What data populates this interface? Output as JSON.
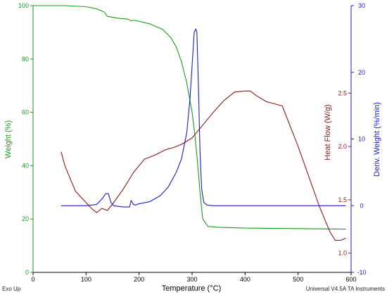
{
  "chart_data": {
    "type": "line",
    "xlabel": "Temperature (°C)",
    "x_ticks": [
      "0",
      "100",
      "200",
      "300",
      "400",
      "500",
      "600"
    ],
    "xlim": [
      0,
      600
    ],
    "grid": false,
    "legend": "none",
    "axes": {
      "weight": {
        "label": "Weight (%)",
        "color": "#1a9a1a",
        "range": [
          0,
          100
        ],
        "ticks": [
          "0",
          "20",
          "40",
          "60",
          "80",
          "100"
        ]
      },
      "heat_flow": {
        "label": "Heat Flow (W/g)",
        "color": "#8b1a1a",
        "range": [
          0.82,
          3.32
        ],
        "ticks": [
          "1.0",
          "1.5",
          "2.0",
          "2.5"
        ],
        "tick_values": [
          1.0,
          1.5,
          2.0,
          2.5
        ]
      },
      "deriv": {
        "label": "Deriv. Weight (%/min)",
        "color": "#1c1ccc",
        "range": [
          -10,
          30
        ],
        "ticks": [
          "-10",
          "0",
          "10",
          "20",
          "30"
        ]
      }
    },
    "series": [
      {
        "axis": "weight",
        "color": "#1a9a1a",
        "x": [
          0,
          60,
          100,
          120,
          135,
          140,
          160,
          180,
          185,
          190,
          220,
          245,
          260,
          270,
          280,
          290,
          300,
          305,
          310,
          315,
          320,
          330,
          350,
          400,
          500,
          590
        ],
        "y": [
          100,
          100,
          99.6,
          98.8,
          97.5,
          96,
          95.3,
          94.9,
          94.3,
          94.6,
          93.2,
          91,
          88,
          84.5,
          79,
          71,
          60,
          52,
          42,
          30,
          20,
          17.2,
          16.9,
          16.6,
          16.4,
          16.2
        ]
      },
      {
        "axis": "heat_flow",
        "color": "#8b1a1a",
        "x": [
          53,
          60,
          70,
          80,
          95,
          110,
          120,
          130,
          140,
          150,
          170,
          190,
          210,
          230,
          250,
          265,
          280,
          300,
          320,
          340,
          360,
          380,
          400,
          410,
          420,
          440,
          470,
          500,
          540,
          560,
          570,
          580,
          590
        ],
        "y": [
          1.95,
          1.82,
          1.7,
          1.58,
          1.5,
          1.42,
          1.38,
          1.42,
          1.4,
          1.46,
          1.6,
          1.76,
          1.88,
          1.92,
          1.97,
          1.99,
          2.02,
          2.08,
          2.2,
          2.32,
          2.43,
          2.51,
          2.52,
          2.52,
          2.48,
          2.42,
          2.38,
          2.0,
          1.44,
          1.2,
          1.12,
          1.12,
          1.14
        ]
      },
      {
        "axis": "deriv",
        "color": "#1c1ccc",
        "x": [
          53,
          100,
          120,
          130,
          137,
          142,
          147,
          152,
          170,
          182,
          185,
          189,
          193,
          200,
          220,
          240,
          255,
          270,
          280,
          290,
          296,
          300,
          304,
          307,
          309,
          312,
          315,
          318,
          322,
          328,
          340,
          400,
          500,
          590
        ],
        "y": [
          0,
          0,
          0.2,
          1,
          1.8,
          1.8,
          0.5,
          0,
          -0.2,
          -0.2,
          0.8,
          0.2,
          0.1,
          0.3,
          0.6,
          1.5,
          2.8,
          5,
          7,
          11,
          16,
          21,
          26,
          26.5,
          26,
          18,
          8,
          2.5,
          0.5,
          0.1,
          0,
          0,
          0,
          0
        ]
      }
    ]
  },
  "footer": {
    "left": "Exo Up",
    "right": "Universal V4.5A TA Instruments"
  }
}
